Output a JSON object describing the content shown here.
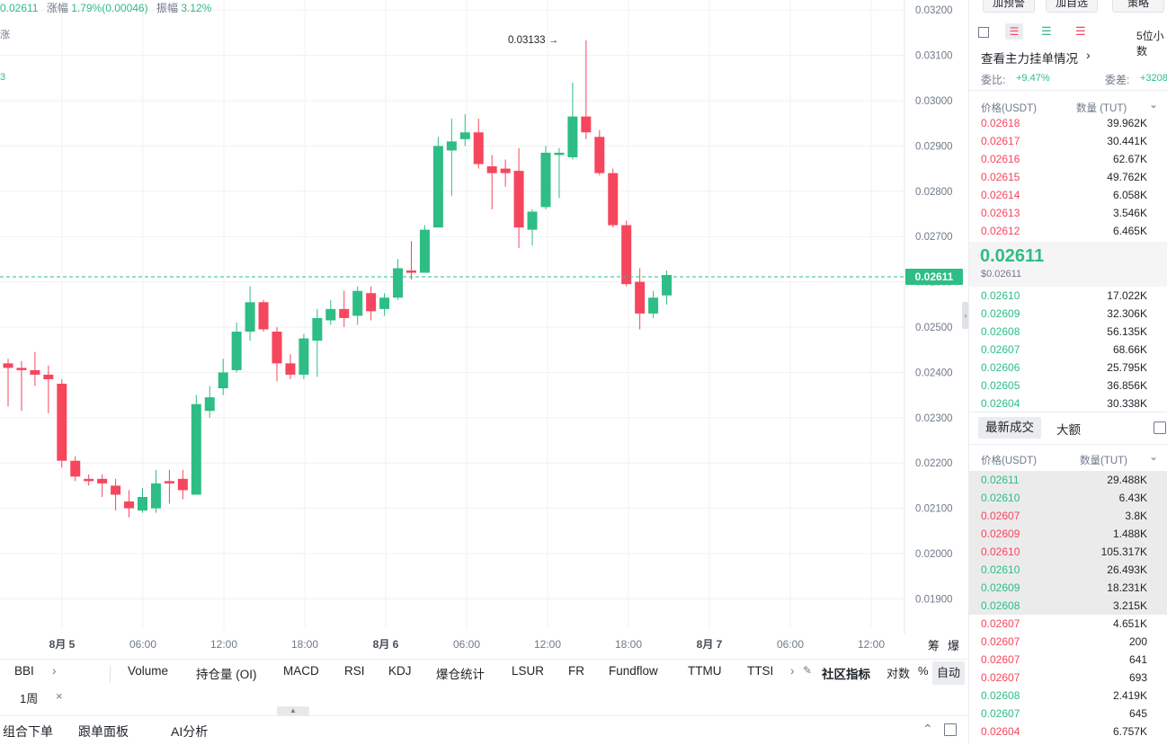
{
  "header": {
    "price": "0.02611",
    "change_label": "涨幅",
    "change_value": "1.79%(0.00046)",
    "amplitude_label": "振幅",
    "amplitude_value": "3.12%"
  },
  "side_left": {
    "text1": "涨",
    "text2": "3"
  },
  "chart": {
    "y_ticks": [
      "0.03200",
      "0.03100",
      "0.03000",
      "0.02900",
      "0.02800",
      "0.02700",
      "0.02600",
      "0.02500",
      "0.02400",
      "0.02300",
      "0.02200",
      "0.02100",
      "0.02000",
      "0.01900"
    ],
    "x_ticks": [
      "8月 5",
      "06:00",
      "12:00",
      "18:00",
      "8月 6",
      "06:00",
      "12:00",
      "18:00",
      "8月 7",
      "06:00",
      "12:00"
    ],
    "current_price_tag": "0.02611",
    "high_annotation": "0.03133 →",
    "right_labels": [
      "筹",
      "爆"
    ],
    "candles": [
      [
        0.0242,
        0.0241,
        0.0243,
        0.02325
      ],
      [
        0.0241,
        0.02405,
        0.02425,
        0.02315
      ],
      [
        0.02405,
        0.02395,
        0.02445,
        0.0237
      ],
      [
        0.02395,
        0.02385,
        0.02415,
        0.0231
      ],
      [
        0.02375,
        0.02205,
        0.02385,
        0.0219
      ],
      [
        0.02205,
        0.0217,
        0.02215,
        0.0216
      ],
      [
        0.02165,
        0.0216,
        0.02175,
        0.0215
      ],
      [
        0.02165,
        0.02155,
        0.02175,
        0.02125
      ],
      [
        0.0215,
        0.0213,
        0.02165,
        0.02095
      ],
      [
        0.02115,
        0.021,
        0.0214,
        0.0208
      ],
      [
        0.02095,
        0.02125,
        0.02145,
        0.0209
      ],
      [
        0.021,
        0.02155,
        0.02185,
        0.0209
      ],
      [
        0.0216,
        0.02155,
        0.02185,
        0.0211
      ],
      [
        0.02165,
        0.0214,
        0.02185,
        0.0212
      ],
      [
        0.0213,
        0.0233,
        0.0235,
        0.0213
      ],
      [
        0.02315,
        0.02345,
        0.0237,
        0.023
      ],
      [
        0.02365,
        0.024,
        0.0243,
        0.0235
      ],
      [
        0.02405,
        0.0249,
        0.0251,
        0.024
      ],
      [
        0.0249,
        0.02555,
        0.0259,
        0.0247
      ],
      [
        0.02555,
        0.02495,
        0.0256,
        0.0249
      ],
      [
        0.0249,
        0.0242,
        0.025,
        0.0238
      ],
      [
        0.0242,
        0.02395,
        0.0244,
        0.02385
      ],
      [
        0.02395,
        0.02475,
        0.02485,
        0.02385
      ],
      [
        0.0247,
        0.0252,
        0.0254,
        0.0239
      ],
      [
        0.02515,
        0.0254,
        0.0256,
        0.02505
      ],
      [
        0.0254,
        0.0252,
        0.0258,
        0.025
      ],
      [
        0.02525,
        0.0258,
        0.0259,
        0.02505
      ],
      [
        0.02575,
        0.02535,
        0.0259,
        0.02515
      ],
      [
        0.0254,
        0.02565,
        0.02575,
        0.02525
      ],
      [
        0.02565,
        0.0263,
        0.0265,
        0.0256
      ],
      [
        0.02625,
        0.0262,
        0.0269,
        0.02605
      ],
      [
        0.0262,
        0.02715,
        0.02725,
        0.0262
      ],
      [
        0.0272,
        0.029,
        0.0292,
        0.0272
      ],
      [
        0.0289,
        0.0291,
        0.0296,
        0.0279
      ],
      [
        0.02915,
        0.0293,
        0.0297,
        0.029
      ],
      [
        0.0293,
        0.0286,
        0.0296,
        0.0285
      ],
      [
        0.02855,
        0.0284,
        0.0288,
        0.0276
      ],
      [
        0.0285,
        0.0284,
        0.0287,
        0.0281
      ],
      [
        0.02845,
        0.0272,
        0.02895,
        0.02675
      ],
      [
        0.02715,
        0.02755,
        0.0276,
        0.0268
      ],
      [
        0.02765,
        0.02885,
        0.029,
        0.0276
      ],
      [
        0.0288,
        0.02885,
        0.02895,
        0.02785
      ],
      [
        0.02875,
        0.02965,
        0.0304,
        0.0287
      ],
      [
        0.02965,
        0.0293,
        0.03133,
        0.02915
      ],
      [
        0.0292,
        0.0284,
        0.02935,
        0.02835
      ],
      [
        0.0284,
        0.02725,
        0.0285,
        0.0272
      ],
      [
        0.02725,
        0.02595,
        0.02735,
        0.0259
      ],
      [
        0.026,
        0.0253,
        0.0263,
        0.02495
      ],
      [
        0.0253,
        0.02565,
        0.0258,
        0.0252
      ],
      [
        0.0257,
        0.02615,
        0.02625,
        0.0255
      ]
    ]
  },
  "indicators": {
    "left": "BBI",
    "items": [
      "Volume",
      "持仓量 (OI)",
      "MACD",
      "RSI",
      "KDJ",
      "爆仓统计",
      "LSUR",
      "FR",
      "Fundflow",
      "TTMU",
      "TTSI"
    ],
    "community": "社区指标",
    "log": "对数",
    "percent": "%",
    "auto": "自动"
  },
  "period": {
    "label": "1周",
    "close": "×"
  },
  "bottom_tabs": [
    "组合下单",
    "跟单面板",
    "AI分析"
  ],
  "right": {
    "top_buttons": [
      "加预警",
      "加自选",
      "策略"
    ],
    "decimal": "5位小数",
    "main_orders": "查看主力挂单情况",
    "ratio_label": "委比:",
    "ratio_value": "+9.47%",
    "diff_label": "委差:",
    "diff_value": "+3208",
    "col_price": "价格(USDT)",
    "col_qty": "数量 (TUT)",
    "asks": [
      {
        "p": "0.02618",
        "q": "39.962K"
      },
      {
        "p": "0.02617",
        "q": "30.441K"
      },
      {
        "p": "0.02616",
        "q": "62.67K"
      },
      {
        "p": "0.02615",
        "q": "49.762K"
      },
      {
        "p": "0.02614",
        "q": "6.058K"
      },
      {
        "p": "0.02613",
        "q": "3.546K"
      },
      {
        "p": "0.02612",
        "q": "6.465K"
      }
    ],
    "mid_price": "0.02611",
    "mid_usd": "$0.02611",
    "bids": [
      {
        "p": "0.02610",
        "q": "17.022K"
      },
      {
        "p": "0.02609",
        "q": "32.306K"
      },
      {
        "p": "0.02608",
        "q": "56.135K"
      },
      {
        "p": "0.02607",
        "q": "68.66K"
      },
      {
        "p": "0.02606",
        "q": "25.795K"
      },
      {
        "p": "0.02605",
        "q": "36.856K"
      },
      {
        "p": "0.02604",
        "q": "30.338K"
      }
    ],
    "trades_tab": "最新成交",
    "large_tab": "大额",
    "trades_col_price": "价格(USDT)",
    "trades_col_qty": "数量(TUT)",
    "trades": [
      {
        "p": "0.02611",
        "q": "29.488K",
        "side": "buy",
        "hl": true
      },
      {
        "p": "0.02610",
        "q": "6.43K",
        "side": "buy",
        "hl": true
      },
      {
        "p": "0.02607",
        "q": "3.8K",
        "side": "sell",
        "hl": true
      },
      {
        "p": "0.02609",
        "q": "1.488K",
        "side": "sell",
        "hl": true
      },
      {
        "p": "0.02610",
        "q": "105.317K",
        "side": "sell",
        "hl": true
      },
      {
        "p": "0.02610",
        "q": "26.493K",
        "side": "buy",
        "hl": true
      },
      {
        "p": "0.02609",
        "q": "18.231K",
        "side": "buy",
        "hl": true
      },
      {
        "p": "0.02608",
        "q": "3.215K",
        "side": "buy",
        "hl": true
      },
      {
        "p": "0.02607",
        "q": "4.651K",
        "side": "sell",
        "hl": false
      },
      {
        "p": "0.02607",
        "q": "200",
        "side": "sell",
        "hl": false
      },
      {
        "p": "0.02607",
        "q": "641",
        "side": "sell",
        "hl": false
      },
      {
        "p": "0.02607",
        "q": "693",
        "side": "sell",
        "hl": false
      },
      {
        "p": "0.02608",
        "q": "2.419K",
        "side": "buy",
        "hl": false
      },
      {
        "p": "0.02607",
        "q": "645",
        "side": "buy",
        "hl": false
      },
      {
        "p": "0.02604",
        "q": "6.757K",
        "side": "sell",
        "hl": false
      }
    ]
  },
  "colors": {
    "up": "#2ebd85",
    "down": "#f6465d",
    "grid": "#f0f1f3",
    "axis_text": "#707a8a"
  }
}
